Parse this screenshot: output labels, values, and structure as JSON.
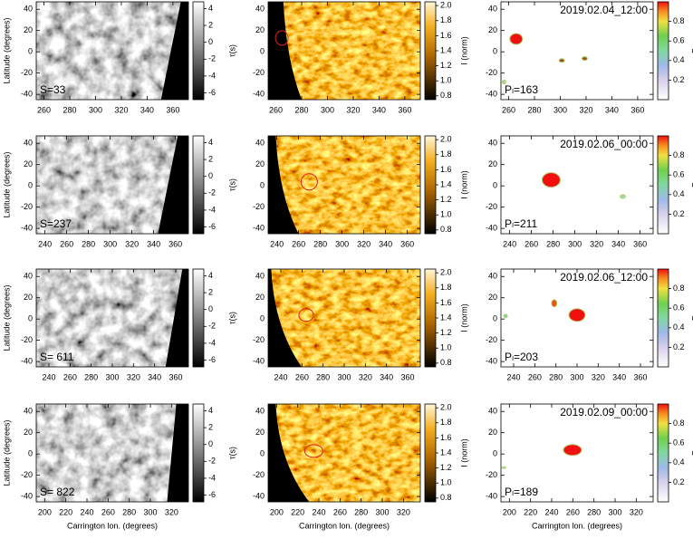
{
  "chart_data": [
    {
      "type": "image",
      "ylabel": "Latitude (degrees)",
      "annotation": "S=33",
      "xlim": [
        254,
        372
      ],
      "xticks": [
        260,
        280,
        300,
        320,
        340,
        360
      ],
      "ylim": [
        -45,
        47
      ],
      "yticks": [
        -40,
        -20,
        0,
        20,
        40
      ],
      "colorbar": {
        "label": "τ(s)",
        "cmap": "gray",
        "lim": [
          -6.8,
          4.8
        ],
        "ticks": [
          -6,
          -4,
          -2,
          0,
          2,
          4
        ]
      }
    },
    {
      "type": "image",
      "xlim": [
        254,
        372
      ],
      "xticks": [
        260,
        280,
        300,
        320,
        340,
        360
      ],
      "ylim": [
        -45,
        47
      ],
      "yticks": [
        -40,
        -20,
        0,
        20,
        40
      ],
      "colorbar": {
        "label": "I (norm)",
        "cmap": "orange",
        "lim": [
          0.75,
          2.05
        ],
        "ticks": [
          0.8,
          {
            "value": 1,
            "label": "1.0"
          },
          1.2,
          1.4,
          1.6,
          1.8,
          {
            "value": 2,
            "label": "2.0"
          }
        ]
      }
    },
    {
      "type": "image",
      "date": "2019.02.04_12:00",
      "annotation": "Pₗ=163",
      "xlim": [
        254,
        372
      ],
      "xticks": [
        260,
        280,
        300,
        320,
        340,
        360
      ],
      "ylim": [
        -45,
        47
      ],
      "yticks": [
        -40,
        -20,
        0,
        20,
        40
      ],
      "colorbar": {
        "label": "P",
        "cmap": "prob",
        "lim": [
          0,
          1
        ],
        "ticks": [
          0.2,
          0.4,
          0.6,
          0.8
        ]
      }
    },
    {
      "type": "image",
      "ylabel": "Latitude (degrees)",
      "annotation": "S=237",
      "xlim": [
        232,
        372
      ],
      "xticks": [
        240,
        260,
        280,
        300,
        320,
        340,
        360
      ],
      "ylim": [
        -45,
        47
      ],
      "yticks": [
        -40,
        -20,
        0,
        20,
        40
      ],
      "colorbar": {
        "label": "τ(s)",
        "cmap": "gray",
        "lim": [
          -6.8,
          4.8
        ],
        "ticks": [
          -6,
          -4,
          -2,
          0,
          2,
          4
        ]
      }
    },
    {
      "type": "image",
      "xlim": [
        232,
        372
      ],
      "xticks": [
        240,
        260,
        280,
        300,
        320,
        340,
        360
      ],
      "ylim": [
        -45,
        47
      ],
      "yticks": [
        -40,
        -20,
        0,
        20,
        40
      ],
      "colorbar": {
        "label": "I (norm)",
        "cmap": "orange",
        "lim": [
          0.75,
          2.05
        ],
        "ticks": [
          0.8,
          {
            "value": 1,
            "label": "1.0"
          },
          1.2,
          1.4,
          1.6,
          1.8,
          {
            "value": 2,
            "label": "2.0"
          }
        ]
      }
    },
    {
      "type": "image",
      "date": "2019.02.06_00:00",
      "annotation": "Pₗ=211",
      "xlim": [
        232,
        372
      ],
      "xticks": [
        240,
        260,
        280,
        300,
        320,
        340,
        360
      ],
      "ylim": [
        -45,
        47
      ],
      "yticks": [
        -40,
        -20,
        0,
        20,
        40
      ],
      "colorbar": {
        "label": "P",
        "cmap": "prob",
        "lim": [
          0,
          1
        ],
        "ticks": [
          0.2,
          0.4,
          0.6,
          0.8
        ]
      }
    },
    {
      "type": "image",
      "ylabel": "Latitude (degrees)",
      "annotation": "S= 611",
      "xlim": [
        228,
        372
      ],
      "xticks": [
        240,
        260,
        280,
        300,
        320,
        340,
        360
      ],
      "ylim": [
        -45,
        47
      ],
      "yticks": [
        -40,
        -20,
        0,
        20,
        40
      ],
      "colorbar": {
        "label": "τ(s)",
        "cmap": "gray",
        "lim": [
          -6.8,
          4.8
        ],
        "ticks": [
          -6,
          -4,
          -2,
          0,
          2,
          4
        ]
      }
    },
    {
      "type": "image",
      "xlim": [
        228,
        372
      ],
      "xticks": [
        240,
        260,
        280,
        300,
        320,
        340,
        360
      ],
      "ylim": [
        -45,
        47
      ],
      "yticks": [
        -40,
        -20,
        0,
        20,
        40
      ],
      "colorbar": {
        "label": "I (norm)",
        "cmap": "orange",
        "lim": [
          0.75,
          2.05
        ],
        "ticks": [
          0.8,
          {
            "value": 1,
            "label": "1.0"
          },
          1.2,
          1.4,
          1.6,
          1.8,
          {
            "value": 2,
            "label": "2.0"
          }
        ]
      }
    },
    {
      "type": "image",
      "date": "2019.02.06_12:00",
      "annotation": "Pₗ=203",
      "xlim": [
        228,
        372
      ],
      "xticks": [
        240,
        260,
        280,
        300,
        320,
        340,
        360
      ],
      "ylim": [
        -45,
        47
      ],
      "yticks": [
        -40,
        -20,
        0,
        20,
        40
      ],
      "colorbar": {
        "label": "P",
        "cmap": "prob",
        "lim": [
          0,
          1
        ],
        "ticks": [
          0.2,
          0.4,
          0.6,
          0.8
        ]
      }
    },
    {
      "type": "image",
      "ylabel": "Latitude (degrees)",
      "xlabel": "Carrington lon. (degrees)",
      "annotation": "S= 822",
      "xlim": [
        192,
        336
      ],
      "xticks": [
        200,
        220,
        240,
        260,
        280,
        300,
        320
      ],
      "ylim": [
        -45,
        47
      ],
      "yticks": [
        -40,
        -20,
        0,
        20,
        40
      ],
      "colorbar": {
        "label": "τ(s)",
        "cmap": "gray",
        "lim": [
          -6.8,
          4.8
        ],
        "ticks": [
          -6,
          -4,
          -2,
          0,
          2,
          4
        ]
      }
    },
    {
      "type": "image",
      "xlabel": "Carrington lon. (degrees)",
      "xlim": [
        192,
        336
      ],
      "xticks": [
        200,
        220,
        240,
        260,
        280,
        300,
        320
      ],
      "ylim": [
        -45,
        47
      ],
      "yticks": [
        -40,
        -20,
        0,
        20,
        40
      ],
      "colorbar": {
        "label": "I (norm)",
        "cmap": "orange",
        "lim": [
          0.75,
          2.05
        ],
        "ticks": [
          0.8,
          {
            "value": 1,
            "label": "1.0"
          },
          1.2,
          1.4,
          1.6,
          1.8,
          {
            "value": 2,
            "label": "2.0"
          }
        ]
      }
    },
    {
      "type": "image",
      "xlabel": "Carrington lon. (degrees)",
      "date": "2019.02.09_00:00",
      "annotation": "Pₗ=189",
      "xlim": [
        192,
        336
      ],
      "xticks": [
        200,
        220,
        240,
        260,
        280,
        300,
        320
      ],
      "ylim": [
        -45,
        47
      ],
      "yticks": [
        -40,
        -20,
        0,
        20,
        40
      ],
      "colorbar": {
        "label": "P",
        "cmap": "prob",
        "lim": [
          0,
          1
        ],
        "ticks": [
          0.2,
          0.4,
          0.6,
          0.8
        ]
      }
    }
  ]
}
